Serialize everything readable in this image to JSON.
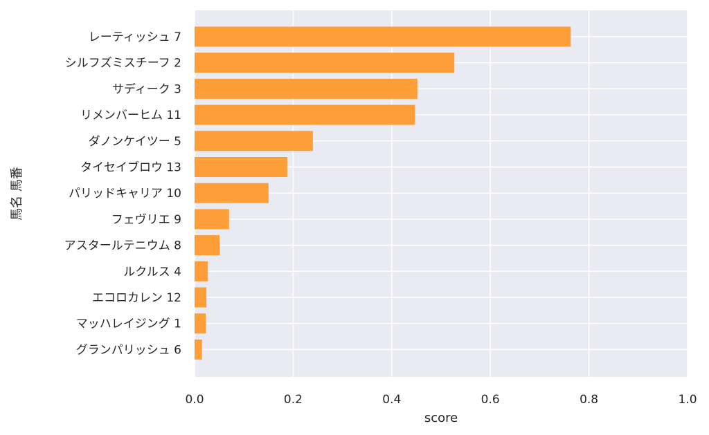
{
  "chart_data": {
    "type": "bar",
    "orientation": "horizontal",
    "title": "",
    "xlabel": "score",
    "ylabel": "馬名 馬番",
    "xlim": [
      0,
      1.0
    ],
    "xticks": [
      "0.0",
      "0.2",
      "0.4",
      "0.6",
      "0.8",
      "1.0"
    ],
    "grid": true,
    "colors": {
      "bar": "#FF9A2E",
      "plot_bg": "#EAEAF2",
      "grid": "#FFFFFF"
    },
    "categories": [
      "レーティッシュ 7",
      "シルフズミスチーフ 2",
      "サディーク 3",
      "リメンバーヒム 11",
      "ダノンケイツー 5",
      "タイセイブロウ 13",
      "パリッドキャリア 10",
      "フェヴリエ 9",
      "アスタールテニウム 8",
      "ルクルス 4",
      "エコロカレン 12",
      "マッハレイジング 1",
      "グランパリッシュ 6"
    ],
    "values": [
      0.763,
      0.527,
      0.452,
      0.447,
      0.24,
      0.188,
      0.15,
      0.07,
      0.051,
      0.027,
      0.024,
      0.023,
      0.015
    ]
  }
}
